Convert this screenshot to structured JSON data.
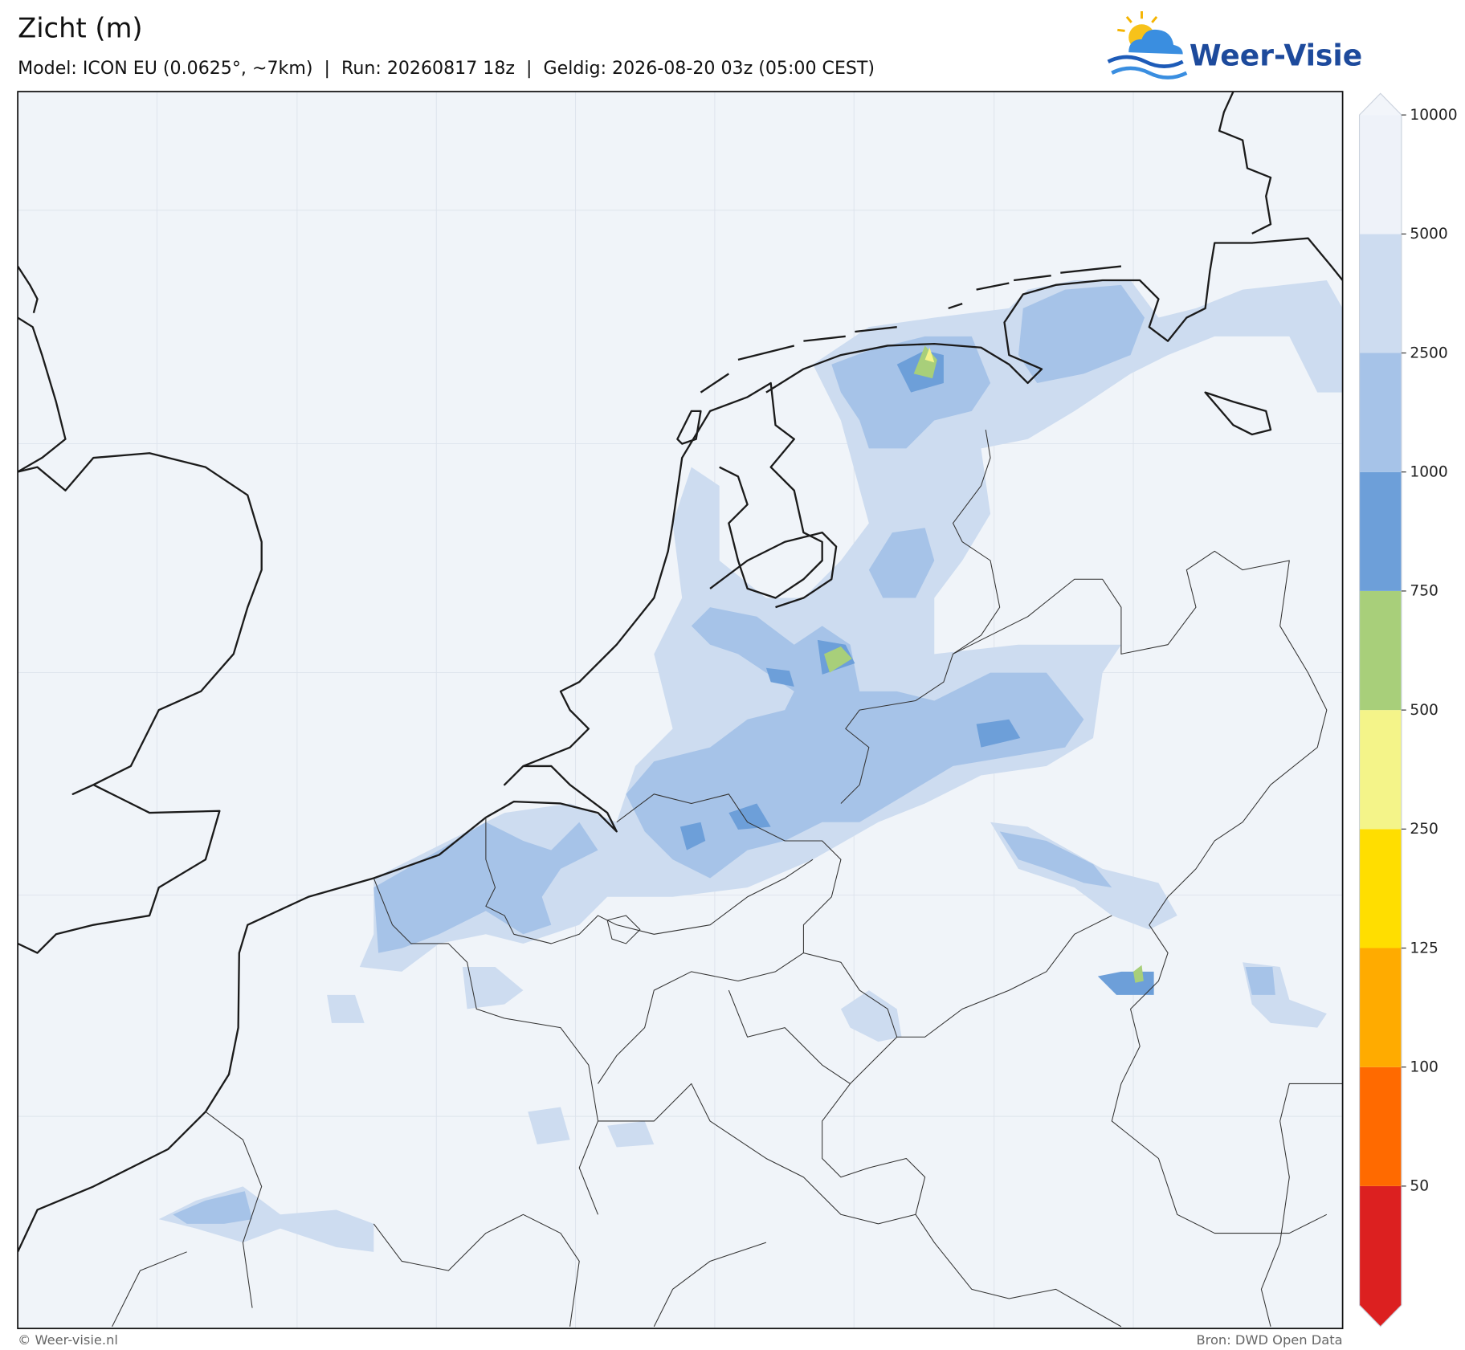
{
  "header": {
    "title": "Zicht (m)",
    "subtitle": "Model: ICON EU (0.0625°, ~7km)  |  Run: 20260817 18z  |  Geldig: 2026-08-20 03z (05:00 CEST)"
  },
  "logo": {
    "text": "Weer-Visie"
  },
  "colorbar": {
    "boundaries": [
      50,
      100,
      125,
      250,
      500,
      750,
      1000,
      2500,
      5000,
      10000
    ],
    "colors": [
      "#dc2020",
      "#ff6a00",
      "#ffab00",
      "#ffde00",
      "#f4f489",
      "#a8cf7a",
      "#6d9fd9",
      "#a6c3e8",
      "#cddcf0",
      "#eef2f9",
      "#f2f5fa"
    ]
  },
  "footer": {
    "credit": "© Weer-visie.nl",
    "source": "Bron: DWD Open Data"
  }
}
